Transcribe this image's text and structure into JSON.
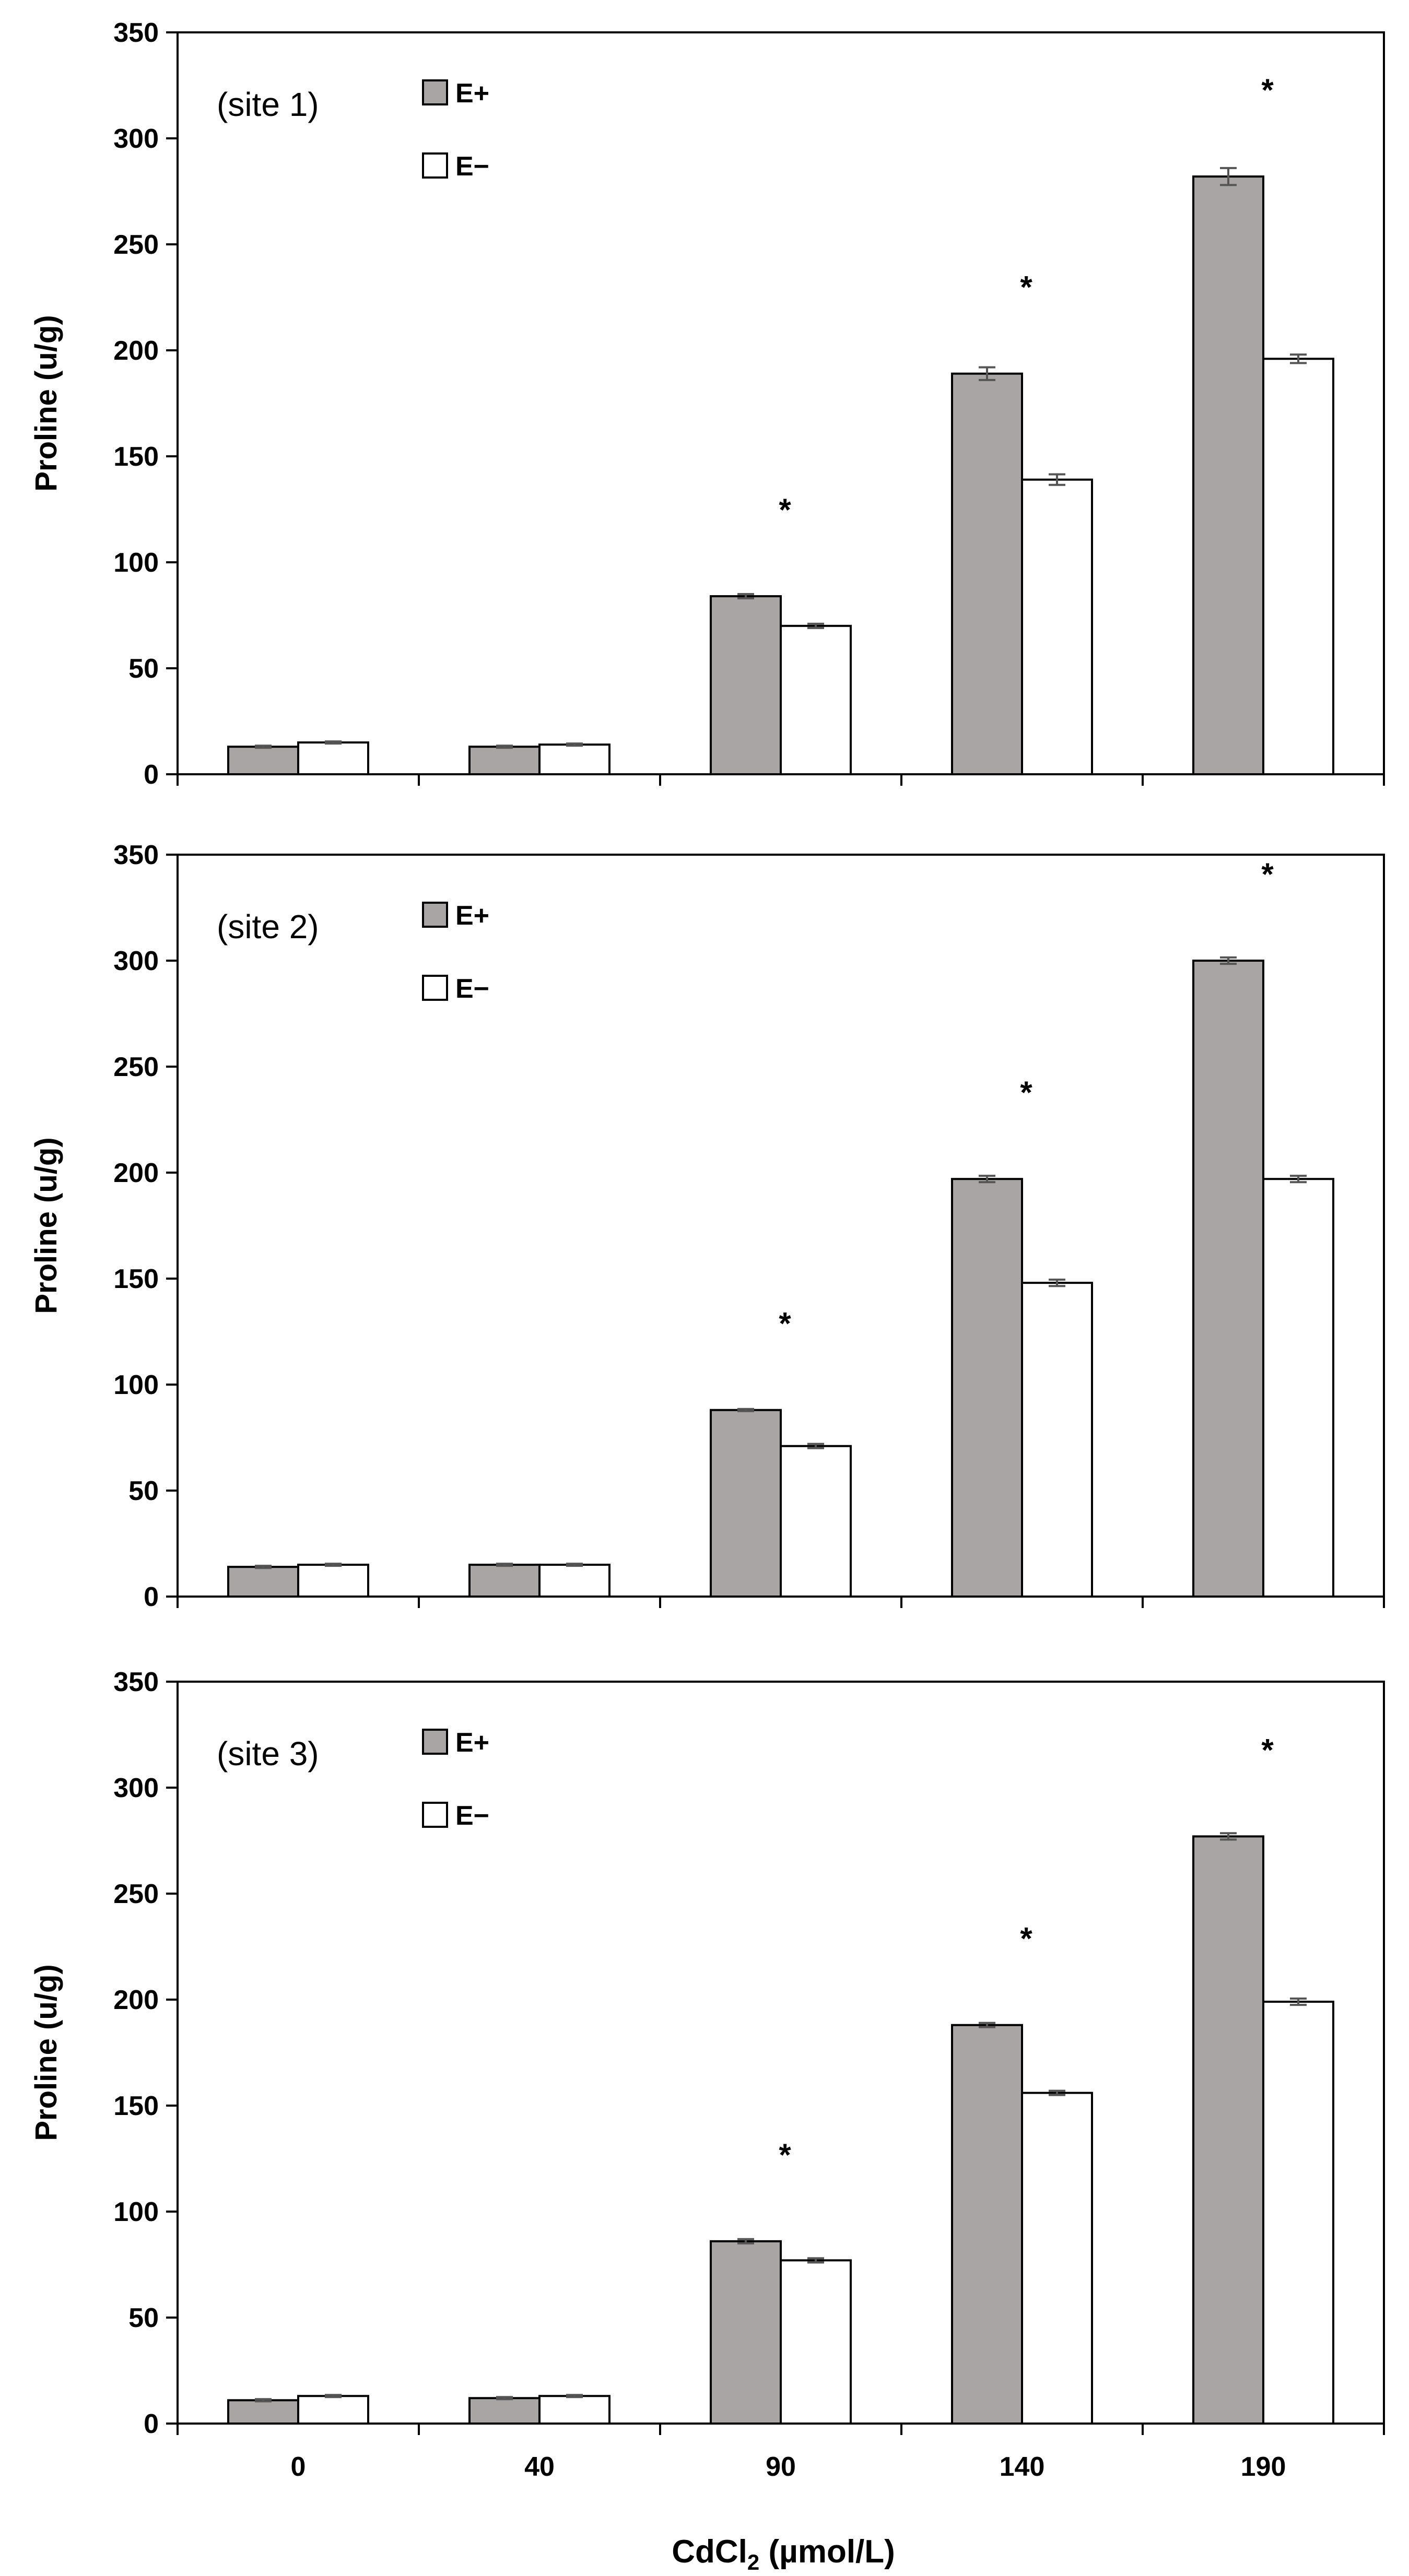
{
  "chart_data": {
    "type": "bar",
    "categories": [
      "0",
      "40",
      "90",
      "140",
      "190"
    ],
    "xlabel_main": "CdCl",
    "xlabel_sub": "2",
    "xlabel_unit": " (µmol/L)",
    "ylabel": "Proline (u/g)",
    "ylim": [
      0,
      350
    ],
    "yticks": [
      "0",
      "50",
      "100",
      "150",
      "200",
      "250",
      "300",
      "350"
    ],
    "significance_marker": "*",
    "colors": {
      "E+": "#a9a5a5",
      "E-": "#ffffff",
      "stroke": "#000000",
      "errorbar": "#555555"
    },
    "legend": [
      "E+",
      "E−"
    ],
    "panels": [
      {
        "title": "(site 1)",
        "series": [
          {
            "name": "E+",
            "values": [
              13,
              13,
              84,
              189,
              282
            ],
            "errors": [
              0.5,
              0.5,
              1,
              3,
              4
            ]
          },
          {
            "name": "E−",
            "values": [
              15,
              14,
              70,
              139,
              196
            ],
            "errors": [
              0.5,
              0.5,
              1,
              2.5,
              2
            ]
          }
        ],
        "significant": [
          false,
          false,
          true,
          true,
          true
        ]
      },
      {
        "title": "(site 2)",
        "series": [
          {
            "name": "E+",
            "values": [
              14,
              15,
              88,
              197,
              300
            ],
            "errors": [
              0.5,
              0.5,
              0.5,
              1.5,
              1.5
            ]
          },
          {
            "name": "E−",
            "values": [
              15,
              15,
              71,
              148,
              197
            ],
            "errors": [
              0.5,
              0.5,
              1,
              1.5,
              1.5
            ]
          }
        ],
        "significant": [
          false,
          false,
          true,
          true,
          true
        ]
      },
      {
        "title": "(site 3)",
        "series": [
          {
            "name": "E+",
            "values": [
              11,
              12,
              86,
              188,
              277
            ],
            "errors": [
              0.5,
              0.5,
              1,
              1,
              1.5
            ]
          },
          {
            "name": "E−",
            "values": [
              13,
              13,
              77,
              156,
              199
            ],
            "errors": [
              0.5,
              0.5,
              1,
              1,
              1.5
            ]
          }
        ],
        "significant": [
          false,
          false,
          true,
          true,
          true
        ]
      }
    ]
  }
}
